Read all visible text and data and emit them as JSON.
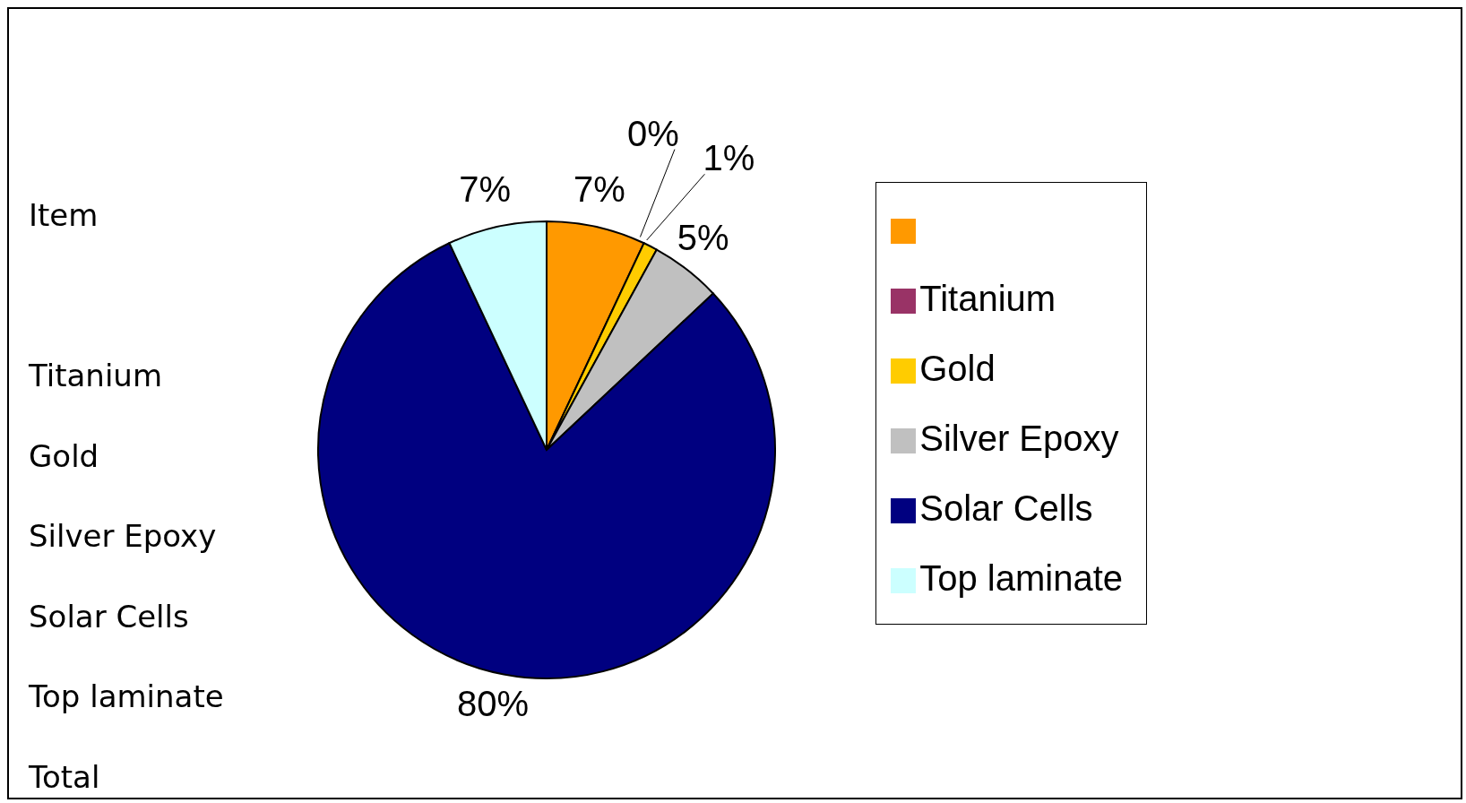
{
  "chart_data": {
    "type": "pie",
    "categories": [
      null,
      "Titanium",
      "Gold",
      "Silver Epoxy",
      "Solar Cells",
      "Top laminate"
    ],
    "values": [
      7,
      0,
      1,
      5,
      80,
      7
    ],
    "colors": [
      "#ff9900",
      "#993366",
      "#ffcc00",
      "#c0c0c0",
      "#000080",
      "#ccffff"
    ],
    "value_labels": [
      "7%",
      "0%",
      "1%",
      "5%",
      "80%",
      "7%"
    ],
    "legend": "right",
    "annotations": [
      "Item",
      null,
      "Titanium",
      "Gold",
      "Silver Epoxy",
      "Solar Cells",
      "Top laminate",
      "Total"
    ]
  }
}
